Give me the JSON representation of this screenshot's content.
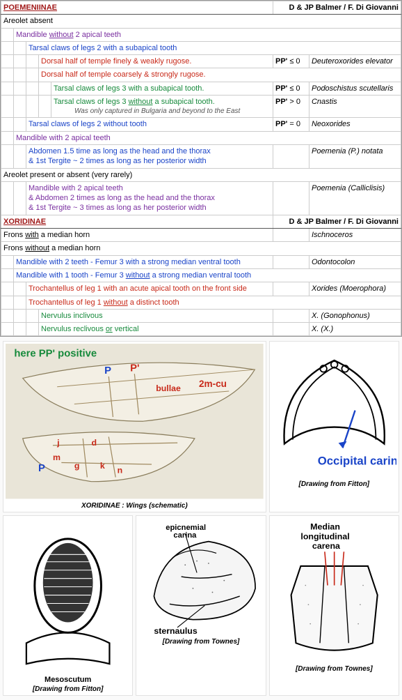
{
  "families": [
    {
      "name": "POEMENIINAE",
      "authors": "D & JP Balmer / F. Di Giovanni",
      "rows": [
        {
          "type": "plain",
          "indent": 0,
          "color": "black",
          "text": "Areolet absent"
        },
        {
          "type": "plain",
          "indent": 1,
          "color": "purple",
          "html": "Mandible <span class='underline'>without</span> 2 apical teeth"
        },
        {
          "type": "plain",
          "indent": 2,
          "color": "blue",
          "text": "Tarsal claws of legs 2 with a subapical tooth"
        },
        {
          "type": "data",
          "indent": 3,
          "color": "red",
          "text": "Dorsal half of temple finely & weakly rugose.",
          "pp": "PP' ≤ 0",
          "species": "Deuteroxorides elevator"
        },
        {
          "type": "plain",
          "indent": 3,
          "color": "red",
          "text": "Dorsal half of temple coarsely & strongly rugose."
        },
        {
          "type": "data",
          "indent": 4,
          "color": "green",
          "text": "Tarsal claws of legs 3 with      a subapical tooth.",
          "pp": "PP' ≤ 0",
          "species": "Podoschistus scutellaris"
        },
        {
          "type": "data",
          "indent": 4,
          "color": "green",
          "html": "Tarsal claws of legs 3 <span class='underline'>without</span> a subapical tooth.",
          "note": "Was only captured in Bulgaria and beyond to the East",
          "pp": "PP' > 0",
          "species": "Cnastis"
        },
        {
          "type": "data",
          "indent": 2,
          "color": "blue",
          "text": "Tarsal claws of legs 2 without tooth",
          "pp": "PP' = 0",
          "species": "Neoxorides"
        },
        {
          "type": "plain",
          "indent": 1,
          "color": "purple",
          "text": "Mandible with 2 apical teeth"
        },
        {
          "type": "data",
          "indent": 2,
          "color": "blue",
          "multi": [
            "Abdomen 1.5 time as long as the head and the thorax",
            "& 1st Tergite ~ 2 times as long as her posterior width"
          ],
          "species": "Poemenia (P.) notata"
        },
        {
          "type": "plain",
          "indent": 0,
          "color": "black",
          "text": "Areolet present or absent (very rarely)"
        },
        {
          "type": "data",
          "indent": 2,
          "color": "purple",
          "multi": [
            "Mandible with 2 apical teeth",
            "& Abdomen 2 times as long as the head and the thorax",
            "& 1st Tergite ~ 3 times as long as her posterior width"
          ],
          "species": "Poemenia (Calliclisis)"
        }
      ]
    },
    {
      "name": "XORIDINAE",
      "authors": "D & JP Balmer / F. Di Giovanni",
      "rows": [
        {
          "type": "data",
          "indent": 0,
          "color": "black",
          "html": "Frons <span class='underline'>with</span>      a median horn",
          "species": "Ischnoceros"
        },
        {
          "type": "plain",
          "indent": 0,
          "color": "black",
          "html": "Frons <span class='underline'>without</span> a median horn"
        },
        {
          "type": "data",
          "indent": 1,
          "color": "blue",
          "text": "Mandible with 2 teeth - Femur 3 with      a strong median ventral tooth",
          "species": "Odontocolon"
        },
        {
          "type": "plain",
          "indent": 1,
          "color": "blue",
          "html": "Mandible with 1 tooth - Femur 3 <span class='underline'>without</span> a strong median ventral tooth"
        },
        {
          "type": "data",
          "indent": 2,
          "color": "red",
          "text": "Trochantellus of leg 1 with an acute apical tooth on the front side",
          "species": "Xorides (Moerophora)"
        },
        {
          "type": "plain",
          "indent": 2,
          "color": "red",
          "html": "Trochantellus of leg 1 <span class='underline'>without</span> a distinct tooth"
        },
        {
          "type": "data",
          "indent": 3,
          "color": "green",
          "text": "Nervulus inclivous",
          "species": "X. (Gonophonus)"
        },
        {
          "type": "data",
          "indent": 3,
          "color": "green",
          "html": "Nervulus reclivous <span class='underline'>or</span> vertical",
          "species": "X. (X.)"
        }
      ]
    }
  ],
  "figures": {
    "wing": {
      "caption": "XORIDINAE : Wings (schematic)",
      "title": "here PP' positive",
      "labels": [
        "P",
        "P'",
        "bullae",
        "2m-cu",
        "j",
        "d",
        "m",
        "g",
        "k",
        "n",
        "P"
      ]
    },
    "occipital": {
      "label": "Occipital carina",
      "caption": "[Drawing from Fitton]"
    },
    "mesoscutum": {
      "title": "Mesoscutum",
      "caption": "[Drawing from Fitton]"
    },
    "sternaulus": {
      "labels": [
        "epicnemial carina",
        "sternaulus"
      ],
      "caption": "[Drawing from Townes]"
    },
    "carena": {
      "label": "Median longitudinal carena",
      "caption": "[Drawing from Townes]"
    }
  },
  "colors": {
    "black": "#000000",
    "purple": "#7a2fa0",
    "blue": "#1a44c8",
    "red": "#c82a1a",
    "green": "#178a3c"
  }
}
